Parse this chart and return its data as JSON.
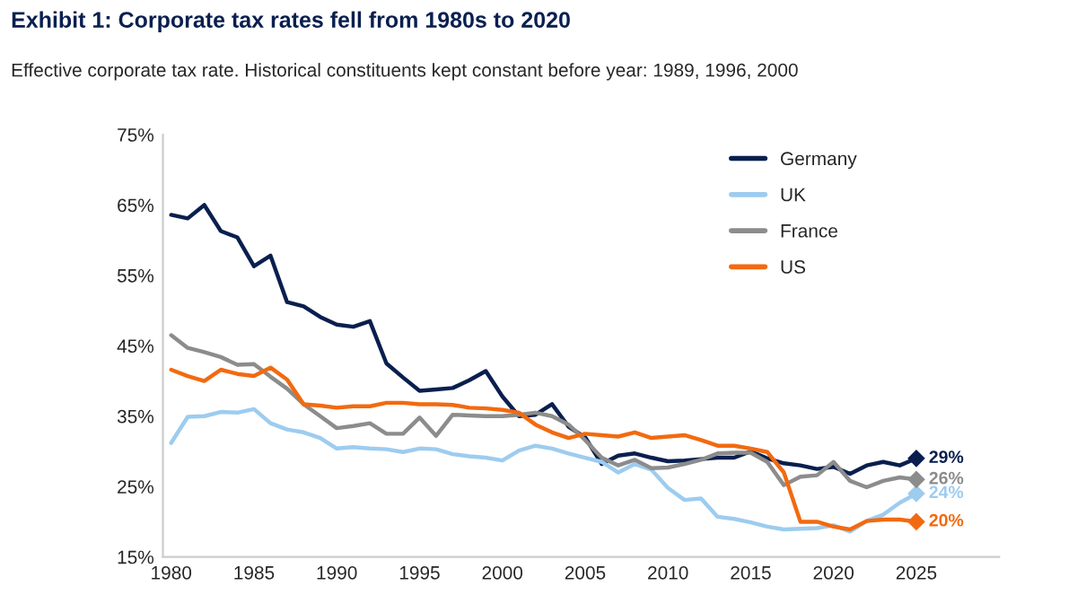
{
  "chart_data": {
    "type": "line",
    "title": "Exhibit 1: Corporate tax rates fell from 1980s to 2020",
    "subtitle": "Effective corporate tax rate. Historical constituents kept constant before year: 1989, 1996, 2000",
    "x": [
      1980,
      1981,
      1982,
      1983,
      1984,
      1985,
      1986,
      1987,
      1988,
      1989,
      1990,
      1991,
      1992,
      1993,
      1994,
      1995,
      1996,
      1997,
      1998,
      1999,
      2000,
      2001,
      2002,
      2003,
      2004,
      2005,
      2006,
      2007,
      2008,
      2009,
      2010,
      2011,
      2012,
      2013,
      2014,
      2015,
      2016,
      2017,
      2018,
      2019,
      2020,
      2021,
      2022,
      2023,
      2024,
      2025
    ],
    "series": [
      {
        "name": "Germany",
        "color": "#0a1f4f",
        "values": [
          63.6,
          63.1,
          65,
          61.3,
          60.4,
          56.3,
          57.8,
          51.2,
          50.6,
          49.1,
          48,
          47.7,
          48.5,
          42.5,
          40.5,
          38.6,
          38.8,
          39,
          40.1,
          41.4,
          37.8,
          35,
          35.2,
          36.7,
          33.5,
          32,
          28.2,
          29.4,
          29.7,
          29.1,
          28.6,
          28.7,
          28.9,
          29.1,
          29.1,
          30,
          29,
          28.3,
          28,
          27.5,
          27.8,
          26.8,
          28,
          28.5,
          28,
          29
        ],
        "value_labels": [
          null,
          null,
          null,
          null,
          null,
          null,
          null,
          null,
          null,
          null,
          null,
          null,
          null,
          null,
          null,
          null,
          null,
          null,
          null,
          null,
          null,
          null,
          null,
          null,
          null,
          null,
          null,
          null,
          null,
          null,
          null,
          null,
          null,
          null,
          null,
          null,
          null,
          null,
          null,
          null,
          null,
          null,
          null,
          null,
          null,
          "29%"
        ]
      },
      {
        "name": "UK",
        "color": "#9dccef",
        "values": [
          31.2,
          34.9,
          35,
          35.6,
          35.5,
          36,
          34,
          33.1,
          32.7,
          31.9,
          30.4,
          30.6,
          30.4,
          30.3,
          29.9,
          30.4,
          30.3,
          29.6,
          29.3,
          29.1,
          28.7,
          30.1,
          30.8,
          30.4,
          29.7,
          29.1,
          28.5,
          27,
          28.2,
          27.4,
          24.8,
          23.1,
          23.3,
          20.7,
          20.4,
          19.9,
          19.3,
          18.9,
          19,
          19.1,
          19.5,
          18.6,
          20.1,
          21,
          22.7,
          24
        ],
        "value_labels": [
          null,
          null,
          null,
          null,
          null,
          null,
          null,
          null,
          null,
          null,
          null,
          null,
          null,
          null,
          null,
          null,
          null,
          null,
          null,
          null,
          null,
          null,
          null,
          null,
          null,
          null,
          null,
          null,
          null,
          null,
          null,
          null,
          null,
          null,
          null,
          null,
          null,
          null,
          null,
          null,
          null,
          null,
          null,
          null,
          null,
          "24%"
        ]
      },
      {
        "name": "France",
        "color": "#8c8c8c",
        "values": [
          46.5,
          44.7,
          44.1,
          43.4,
          42.3,
          42.4,
          40.6,
          38.9,
          36.7,
          35,
          33.3,
          33.6,
          34,
          32.5,
          32.5,
          34.8,
          32.2,
          35.2,
          35.1,
          35,
          35,
          35.2,
          35.5,
          35,
          33.8,
          31.6,
          29.1,
          28,
          28.8,
          27.6,
          27.7,
          28.2,
          28.8,
          29.7,
          29.8,
          29.8,
          28.5,
          25.2,
          26.4,
          26.6,
          28.5,
          25.8,
          24.9,
          25.8,
          26.3,
          26
        ],
        "value_labels": [
          null,
          null,
          null,
          null,
          null,
          null,
          null,
          null,
          null,
          null,
          null,
          null,
          null,
          null,
          null,
          null,
          null,
          null,
          null,
          null,
          null,
          null,
          null,
          null,
          null,
          null,
          null,
          null,
          null,
          null,
          null,
          null,
          null,
          null,
          null,
          null,
          null,
          null,
          null,
          null,
          null,
          null,
          null,
          null,
          null,
          "26%"
        ]
      },
      {
        "name": "US",
        "color": "#f26a10",
        "values": [
          41.6,
          40.7,
          40,
          41.6,
          41,
          40.7,
          41.9,
          40.2,
          36.7,
          36.5,
          36.2,
          36.4,
          36.4,
          36.9,
          36.9,
          36.7,
          36.7,
          36.6,
          36.2,
          36.1,
          35.9,
          35.5,
          33.8,
          32.7,
          31.9,
          32.5,
          32.3,
          32.1,
          32.7,
          31.9,
          32.1,
          32.3,
          31.6,
          30.8,
          30.8,
          30.4,
          29.9,
          27,
          20,
          20,
          19.3,
          18.9,
          20.1,
          20.3,
          20.3,
          20
        ],
        "value_labels": [
          null,
          null,
          null,
          null,
          null,
          null,
          null,
          null,
          null,
          null,
          null,
          null,
          null,
          null,
          null,
          null,
          null,
          null,
          null,
          null,
          null,
          null,
          null,
          null,
          null,
          null,
          null,
          null,
          null,
          null,
          null,
          null,
          null,
          null,
          null,
          null,
          null,
          null,
          null,
          null,
          null,
          null,
          null,
          null,
          null,
          "20%"
        ]
      }
    ],
    "xlim": [
      1979.5,
      2030
    ],
    "xticks": [
      1980,
      1985,
      1990,
      1995,
      2000,
      2005,
      2010,
      2015,
      2020,
      2025
    ],
    "ylim": [
      15,
      75
    ],
    "yticks": [
      {
        "value": 15,
        "label": "15%"
      },
      {
        "value": 25,
        "label": "25%"
      },
      {
        "value": 35,
        "label": "35%"
      },
      {
        "value": 45,
        "label": "45%"
      },
      {
        "value": 55,
        "label": "55%"
      },
      {
        "value": 65,
        "label": "65%"
      },
      {
        "value": 75,
        "label": "75%"
      }
    ],
    "grid": false,
    "legend": "top right",
    "line_style": "solid",
    "marker": "none"
  }
}
